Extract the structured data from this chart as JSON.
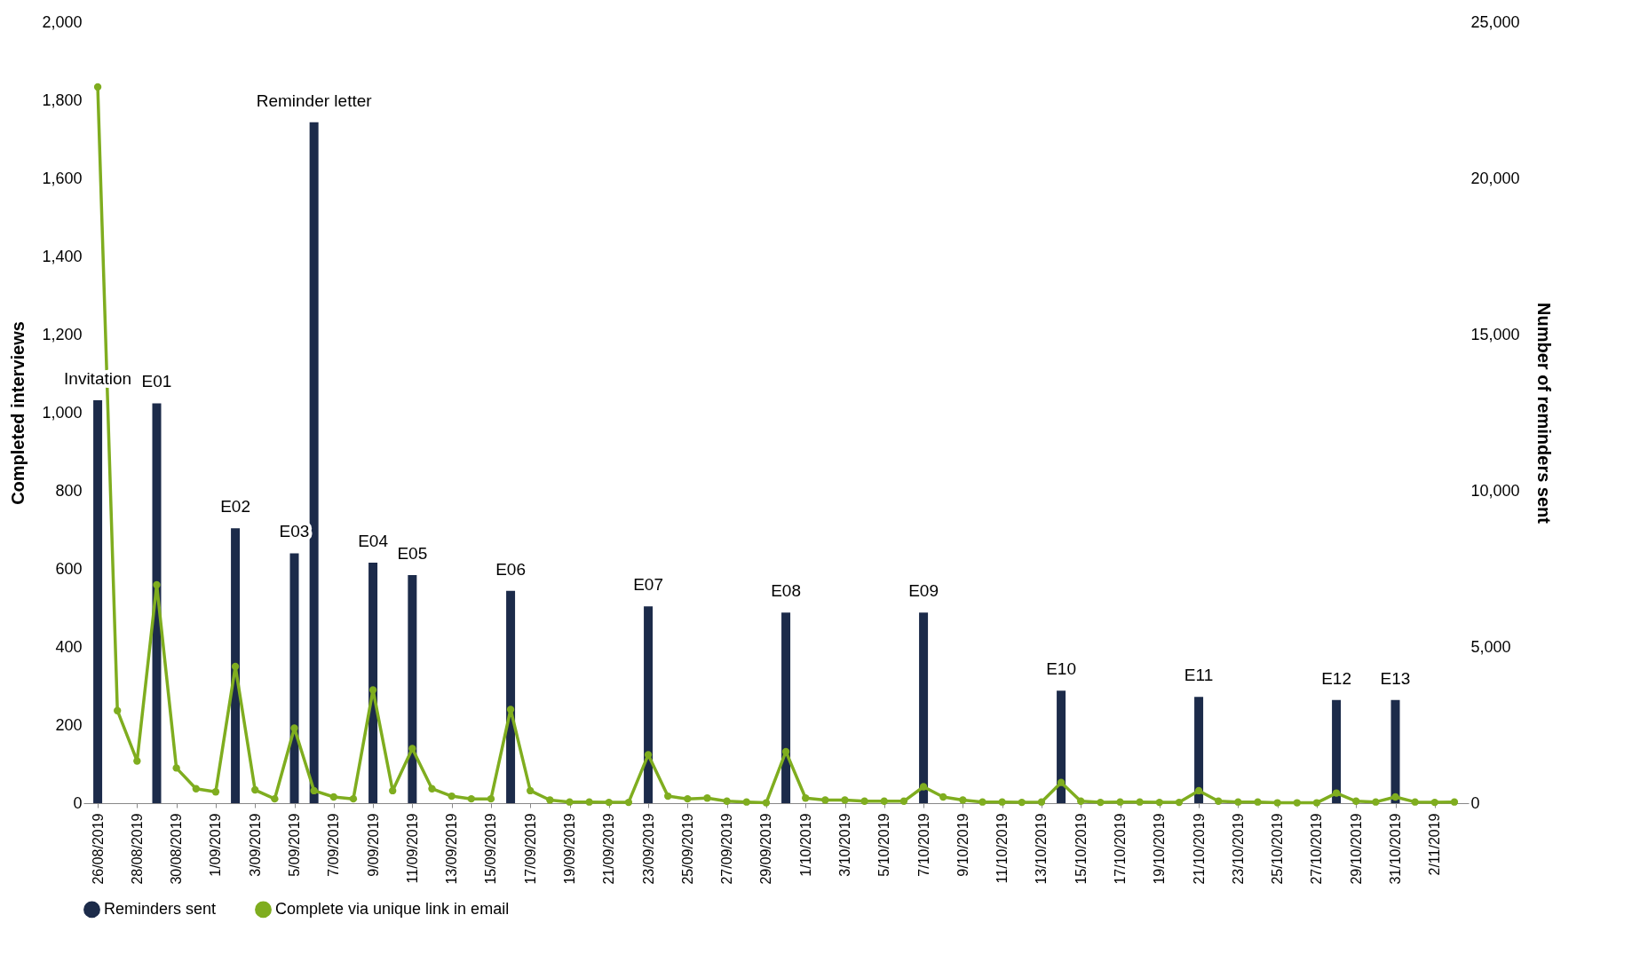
{
  "chart_data": {
    "type": "bar",
    "xlabel": null,
    "ylabel": "Completed interviews",
    "y2label": "Number of reminders sent",
    "x": [
      "2019-08-26",
      "2019-08-27",
      "2019-08-28",
      "2019-08-29",
      "2019-08-30",
      "2019-08-31",
      "2019-09-01",
      "2019-09-02",
      "2019-09-03",
      "2019-09-04",
      "2019-09-05",
      "2019-09-06",
      "2019-09-07",
      "2019-09-08",
      "2019-09-09",
      "2019-09-10",
      "2019-09-11",
      "2019-09-12",
      "2019-09-13",
      "2019-09-14",
      "2019-09-15",
      "2019-09-16",
      "2019-09-17",
      "2019-09-18",
      "2019-09-19",
      "2019-09-20",
      "2019-09-21",
      "2019-09-22",
      "2019-09-23",
      "2019-09-24",
      "2019-09-25",
      "2019-09-26",
      "2019-09-27",
      "2019-09-28",
      "2019-09-29",
      "2019-09-30",
      "2019-10-01",
      "2019-10-02",
      "2019-10-03",
      "2019-10-04",
      "2019-10-05",
      "2019-10-06",
      "2019-10-07",
      "2019-10-08",
      "2019-10-09",
      "2019-10-10",
      "2019-10-11",
      "2019-10-12",
      "2019-10-13",
      "2019-10-14",
      "2019-10-15",
      "2019-10-16",
      "2019-10-17",
      "2019-10-18",
      "2019-10-19",
      "2019-10-20",
      "2019-10-21",
      "2019-10-22",
      "2019-10-23",
      "2019-10-24",
      "2019-10-25",
      "2019-10-26",
      "2019-10-27",
      "2019-10-28",
      "2019-10-29",
      "2019-10-30",
      "2019-10-31",
      "2019-11-01",
      "2019-11-02",
      "2019-11-03"
    ],
    "series": [
      {
        "name": "Reminders sent",
        "axis": "y2",
        "color": "#1c2b4a",
        "values": [
          12900,
          null,
          null,
          12800,
          null,
          null,
          null,
          8800,
          null,
          null,
          8000,
          21800,
          null,
          null,
          7700,
          null,
          7300,
          null,
          null,
          null,
          null,
          6800,
          null,
          null,
          null,
          null,
          null,
          null,
          6300,
          null,
          null,
          null,
          null,
          null,
          null,
          6100,
          null,
          null,
          null,
          null,
          null,
          null,
          6100,
          null,
          null,
          null,
          null,
          null,
          null,
          3600,
          null,
          null,
          null,
          null,
          null,
          null,
          3400,
          null,
          null,
          null,
          null,
          null,
          null,
          3300,
          null,
          null,
          3300,
          null,
          null,
          null
        ]
      },
      {
        "name": "Complete via unique link in email",
        "type": "line",
        "color": "#7fad1f",
        "values": [
          1834,
          237,
          108,
          559,
          90,
          37,
          29,
          350,
          34,
          11,
          192,
          32,
          16,
          11,
          290,
          32,
          140,
          37,
          18,
          11,
          11,
          240,
          32,
          8,
          3,
          3,
          2,
          2,
          124,
          18,
          11,
          13,
          5,
          3,
          1,
          132,
          13,
          8,
          8,
          5,
          5,
          5,
          42,
          16,
          8,
          3,
          3,
          2,
          3,
          53,
          5,
          2,
          3,
          3,
          2,
          2,
          32,
          5,
          3,
          3,
          1,
          1,
          1,
          26,
          5,
          3,
          16,
          3,
          2,
          3
        ]
      }
    ],
    "xlim": [
      "2019-08-25T12:00",
      "2019-11-03T12:00"
    ],
    "xticks": [
      {
        "value": "2019-08-26",
        "label": "26/08/2019"
      },
      {
        "value": "2019-08-28",
        "label": "28/08/2019"
      },
      {
        "value": "2019-08-30",
        "label": "30/08/2019"
      },
      {
        "value": "2019-09-01",
        "label": "1/09/2019"
      },
      {
        "value": "2019-09-03",
        "label": "3/09/2019"
      },
      {
        "value": "2019-09-05",
        "label": "5/09/2019"
      },
      {
        "value": "2019-09-07",
        "label": "7/09/2019"
      },
      {
        "value": "2019-09-09",
        "label": "9/09/2019"
      },
      {
        "value": "2019-09-11",
        "label": "11/09/2019"
      },
      {
        "value": "2019-09-13",
        "label": "13/09/2019"
      },
      {
        "value": "2019-09-15",
        "label": "15/09/2019"
      },
      {
        "value": "2019-09-17",
        "label": "17/09/2019"
      },
      {
        "value": "2019-09-19",
        "label": "19/09/2019"
      },
      {
        "value": "2019-09-21",
        "label": "21/09/2019"
      },
      {
        "value": "2019-09-23",
        "label": "23/09/2019"
      },
      {
        "value": "2019-09-25",
        "label": "25/09/2019"
      },
      {
        "value": "2019-09-27",
        "label": "27/09/2019"
      },
      {
        "value": "2019-09-29",
        "label": "29/09/2019"
      },
      {
        "value": "2019-10-01",
        "label": "1/10/2019"
      },
      {
        "value": "2019-10-03",
        "label": "3/10/2019"
      },
      {
        "value": "2019-10-05",
        "label": "5/10/2019"
      },
      {
        "value": "2019-10-07",
        "label": "7/10/2019"
      },
      {
        "value": "2019-10-09",
        "label": "9/10/2019"
      },
      {
        "value": "2019-10-11",
        "label": "11/10/2019"
      },
      {
        "value": "2019-10-13",
        "label": "13/10/2019"
      },
      {
        "value": "2019-10-15",
        "label": "15/10/2019"
      },
      {
        "value": "2019-10-17",
        "label": "17/10/2019"
      },
      {
        "value": "2019-10-19",
        "label": "19/10/2019"
      },
      {
        "value": "2019-10-21",
        "label": "21/10/2019"
      },
      {
        "value": "2019-10-23",
        "label": "23/10/2019"
      },
      {
        "value": "2019-10-25",
        "label": "25/10/2019"
      },
      {
        "value": "2019-10-27",
        "label": "27/10/2019"
      },
      {
        "value": "2019-10-29",
        "label": "29/10/2019"
      },
      {
        "value": "2019-10-31",
        "label": "31/10/2019"
      },
      {
        "value": "2019-11-02",
        "label": "2/11/2019"
      }
    ],
    "ylim": [
      0,
      2000
    ],
    "yticks": [
      0,
      200,
      400,
      600,
      800,
      {
        "value": 1000,
        "label": "1,000"
      },
      {
        "value": 1200,
        "label": "1,200"
      },
      {
        "value": 1400,
        "label": "1,400"
      },
      {
        "value": 1600,
        "label": "1,600"
      },
      {
        "value": 1800,
        "label": "1,800"
      },
      {
        "value": 2000,
        "label": "2,000"
      }
    ],
    "y2lim": [
      0,
      25000
    ],
    "y2ticks": [
      0,
      {
        "value": 5000,
        "label": "5,000"
      },
      {
        "value": 10000,
        "label": "10,000"
      },
      {
        "value": 15000,
        "label": "15,000"
      },
      {
        "value": 20000,
        "label": "20,000"
      },
      {
        "value": 25000,
        "label": "25,000"
      }
    ],
    "marker": "circle",
    "legend": "bottom",
    "grid": false,
    "annotations": [
      "Invitation",
      "E01",
      "E02",
      "E03",
      "Reminder letter",
      "E04",
      "E05",
      "E06",
      "E07",
      "E08",
      "E09",
      "E10",
      "E11",
      "E12",
      "E13"
    ]
  }
}
